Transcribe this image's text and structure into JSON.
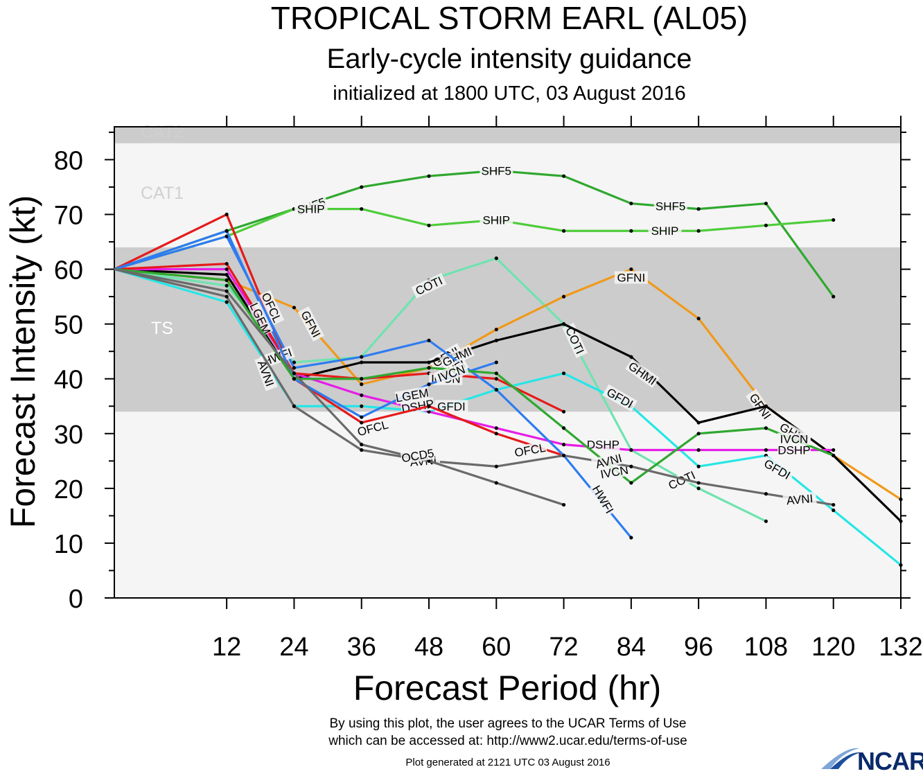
{
  "header": {
    "title": "TROPICAL STORM EARL (AL05)",
    "subtitle": "Early-cycle intensity guidance",
    "init": "initialized at 1800 UTC, 03 August 2016"
  },
  "footer": {
    "line1": "By using this plot, the user agrees to the UCAR Terms of Use",
    "line2": "which can be accessed at: http://www2.ucar.edu/terms-of-use",
    "generated": "Plot generated at 2121 UTC   03 August 2016",
    "logo": "NCAR"
  },
  "chart_data": {
    "type": "line",
    "xlabel": "Forecast Period (hr)",
    "ylabel": "Forecast Intensity (kt)",
    "xlim": [
      -8,
      132
    ],
    "ylim": [
      0,
      86
    ],
    "xticks": [
      12,
      24,
      36,
      48,
      60,
      72,
      84,
      96,
      108,
      120,
      132
    ],
    "yticks": [
      0,
      10,
      20,
      30,
      40,
      50,
      60,
      70,
      80
    ],
    "bands": [
      {
        "label": "TS",
        "from": 34,
        "to": 64,
        "color": "#cccccc"
      },
      {
        "label": "CAT1",
        "from": 64,
        "to": 83,
        "color": "#f5f5f5"
      },
      {
        "label": "CAT2",
        "from": 83,
        "to": 86,
        "color": "#cccccc"
      }
    ],
    "background": "#f5f5f5",
    "series": [
      {
        "name": "SHF5",
        "color": "#2fa82f",
        "x": [
          -8,
          12,
          24,
          36,
          48,
          60,
          72,
          84,
          96,
          108,
          120
        ],
        "y": [
          60,
          67,
          71,
          75,
          77,
          78,
          77,
          72,
          71,
          72,
          55
        ],
        "labels": [
          {
            "text": "SHF5",
            "x": 27,
            "y": 71.5,
            "rot": -20
          },
          {
            "text": "SHF5",
            "x": 60,
            "y": 78,
            "rot": 0
          },
          {
            "text": "SHF5",
            "x": 91,
            "y": 71.5,
            "rot": 0
          }
        ]
      },
      {
        "name": "SHIP",
        "color": "#4ecc3a",
        "x": [
          -8,
          12,
          24,
          36,
          48,
          60,
          72,
          84,
          96,
          108,
          120
        ],
        "y": [
          60,
          66,
          71,
          71,
          68,
          69,
          67,
          67,
          67,
          68,
          69
        ],
        "labels": [
          {
            "text": "SHIP",
            "x": 27,
            "y": 71,
            "rot": 0
          },
          {
            "text": "SHIP",
            "x": 60,
            "y": 69,
            "rot": 0
          },
          {
            "text": "SHIP",
            "x": 90,
            "y": 67,
            "rot": 0
          }
        ]
      },
      {
        "name": "COTI",
        "color": "#6fe3b0",
        "x": [
          -8,
          12,
          24,
          36,
          48,
          60,
          72,
          84,
          96,
          108
        ],
        "y": [
          60,
          57,
          43,
          44,
          58,
          62,
          50,
          27,
          20,
          14
        ],
        "labels": [
          {
            "text": "COTI",
            "x": 48,
            "y": 57,
            "rot": -25
          },
          {
            "text": "COTI",
            "x": 74,
            "y": 47,
            "rot": 65
          },
          {
            "text": "COTI",
            "x": 93,
            "y": 21.5,
            "rot": -25
          }
        ]
      },
      {
        "name": "GFNI",
        "color": "#f0991a",
        "x": [
          -8,
          12,
          24,
          36,
          48,
          60,
          72,
          84,
          96,
          108,
          120,
          132
        ],
        "y": [
          60,
          58,
          53,
          39,
          42,
          49,
          55,
          60,
          51,
          35,
          26,
          18
        ],
        "labels": [
          {
            "text": "GFNI",
            "x": 27,
            "y": 50,
            "rot": 62
          },
          {
            "text": "GFNI",
            "x": 51,
            "y": 44,
            "rot": -30
          },
          {
            "text": "GFNI",
            "x": 84,
            "y": 58.5,
            "rot": 0
          },
          {
            "text": "GFNI",
            "x": 107,
            "y": 35,
            "rot": 55
          }
        ]
      },
      {
        "name": "GHMI",
        "color": "#000000",
        "x": [
          -8,
          12,
          24,
          36,
          48,
          60,
          72,
          84,
          96,
          108,
          120,
          132
        ],
        "y": [
          60,
          59,
          40,
          43,
          43,
          47,
          50,
          44,
          32,
          35,
          26,
          14
        ],
        "labels": [
          {
            "text": "GHMI",
            "x": 53,
            "y": 44,
            "rot": -25
          },
          {
            "text": "GHMI",
            "x": 86,
            "y": 41,
            "rot": 35
          },
          {
            "text": "GHMI",
            "x": 113,
            "y": 30,
            "rot": 30
          }
        ]
      },
      {
        "name": "GFDI",
        "color": "#26e6e6",
        "x": [
          -8,
          12,
          24,
          36,
          48,
          60,
          72,
          84,
          96,
          108,
          120,
          132
        ],
        "y": [
          60,
          54,
          35,
          35,
          34,
          38,
          41,
          35,
          24,
          26,
          16,
          6
        ],
        "labels": [
          {
            "text": "GFDI",
            "x": 52,
            "y": 35,
            "rot": 0
          },
          {
            "text": "GFDI",
            "x": 82,
            "y": 36.5,
            "rot": 30
          },
          {
            "text": "GFDI",
            "x": 110,
            "y": 23.5,
            "rot": 30
          }
        ]
      },
      {
        "name": "DSHP",
        "color": "#e61ee6",
        "x": [
          -8,
          12,
          24,
          36,
          48,
          60,
          72,
          84,
          96,
          108,
          120
        ],
        "y": [
          60,
          60,
          41,
          37,
          34,
          31,
          28,
          27,
          27,
          27,
          27
        ],
        "labels": [
          {
            "text": "DSHP",
            "x": 46,
            "y": 35,
            "rot": -10
          },
          {
            "text": "DSHP",
            "x": 79,
            "y": 28,
            "rot": 0
          },
          {
            "text": "DSHP",
            "x": 113,
            "y": 27,
            "rot": 0
          }
        ]
      },
      {
        "name": "OFCL",
        "color": "#e61a1a",
        "x": [
          -8,
          12,
          24,
          36,
          48,
          60,
          72
        ],
        "y": [
          60,
          70,
          40,
          32,
          35,
          30,
          26
        ],
        "labels": [
          {
            "text": "OFCL",
            "x": 20,
            "y": 53,
            "rot": 65
          },
          {
            "text": "OFCL",
            "x": 38,
            "y": 31,
            "rot": -15
          },
          {
            "text": "OFCL",
            "x": 66,
            "y": 27,
            "rot": -10
          }
        ]
      },
      {
        "name": "ICON",
        "color": "#e61a1a",
        "x": [
          -8,
          12,
          24,
          36,
          48,
          60,
          72
        ],
        "y": [
          60,
          61,
          41,
          40,
          41,
          40,
          34
        ],
        "labels": [
          {
            "text": "ICON",
            "x": 51,
            "y": 40,
            "rot": 0
          }
        ]
      },
      {
        "name": "HWFI",
        "color": "#2e7cf0",
        "x": [
          -8,
          12,
          24,
          36,
          48,
          60,
          72,
          84
        ],
        "y": [
          60,
          66,
          42,
          44,
          47,
          38,
          26,
          11
        ],
        "labels": [
          {
            "text": "HWFI",
            "x": 21,
            "y": 44,
            "rot": -20
          },
          {
            "text": "HWFI",
            "x": 52,
            "y": 41.5,
            "rot": -30
          },
          {
            "text": "HWFI",
            "x": 79,
            "y": 18,
            "rot": 60
          }
        ]
      },
      {
        "name": "LGEM",
        "color": "#2e7cf0",
        "x": [
          -8,
          12,
          24,
          36,
          48,
          60
        ],
        "y": [
          60,
          67,
          40,
          33,
          39,
          43
        ],
        "labels": [
          {
            "text": "LGEM",
            "x": 18,
            "y": 51,
            "rot": 65
          },
          {
            "text": "LGEM",
            "x": 45,
            "y": 37,
            "rot": -10
          }
        ]
      },
      {
        "name": "IVCN",
        "color": "#2fa82f",
        "x": [
          -8,
          12,
          24,
          36,
          48,
          60,
          72,
          84,
          96,
          108,
          120
        ],
        "y": [
          60,
          58,
          40,
          40,
          42,
          41,
          31,
          21,
          30,
          31,
          26
        ],
        "labels": [
          {
            "text": "IVCN",
            "x": 52,
            "y": 41,
            "rot": -20
          },
          {
            "text": "IVCN",
            "x": 81,
            "y": 23,
            "rot": -10
          },
          {
            "text": "IVCN",
            "x": 113,
            "y": 29,
            "rot": 0
          }
        ]
      },
      {
        "name": "AVNI",
        "color": "#6a6a6a",
        "x": [
          -8,
          12,
          24,
          36,
          48,
          60,
          72,
          84,
          96,
          108,
          120
        ],
        "y": [
          60,
          56,
          41,
          28,
          25,
          24,
          26,
          24,
          21,
          19,
          17
        ],
        "labels": [
          {
            "text": "AVNI",
            "x": 19,
            "y": 41,
            "rot": 70
          },
          {
            "text": "AVNI",
            "x": 47,
            "y": 25,
            "rot": -5
          },
          {
            "text": "AVNI",
            "x": 80,
            "y": 25,
            "rot": -15
          },
          {
            "text": "AVNI",
            "x": 114,
            "y": 18,
            "rot": -5
          }
        ]
      },
      {
        "name": "OCD5",
        "color": "#6a6a6a",
        "x": [
          -8,
          12,
          24,
          36,
          48,
          60,
          72
        ],
        "y": [
          60,
          55,
          35,
          27,
          25,
          21,
          17
        ],
        "labels": [
          {
            "text": "OCD5",
            "x": 46,
            "y": 26,
            "rot": -10
          }
        ]
      }
    ]
  }
}
